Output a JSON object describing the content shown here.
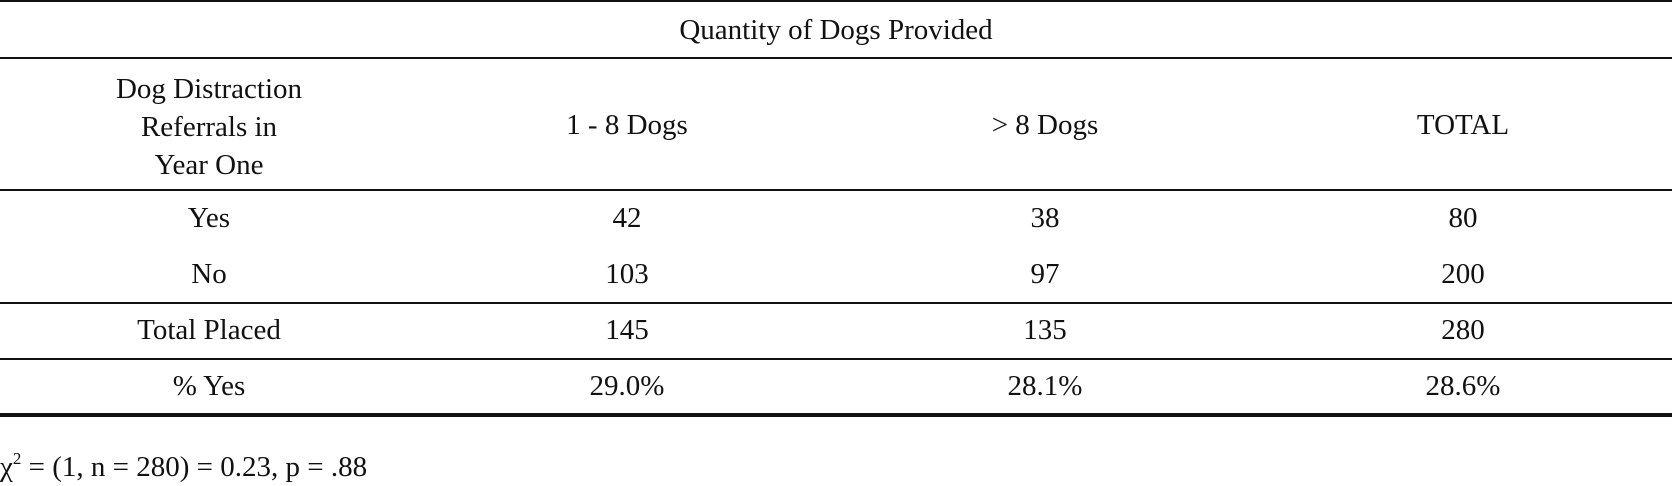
{
  "table": {
    "spanner_header": "Quantity of Dogs Provided",
    "stub_header_lines": [
      "Dog Distraction",
      "Referrals in",
      "Year One"
    ],
    "column_headers": [
      "1 - 8 Dogs",
      "> 8 Dogs",
      "TOTAL"
    ],
    "rows": [
      {
        "label": "Yes",
        "values": [
          "42",
          "38",
          "80"
        ]
      },
      {
        "label": "No",
        "values": [
          "103",
          "97",
          "200"
        ]
      },
      {
        "label": "Total Placed",
        "values": [
          "145",
          "135",
          "280"
        ]
      },
      {
        "label": "% Yes",
        "values": [
          "29.0%",
          "28.1%",
          "28.6%"
        ]
      }
    ]
  },
  "footnote": {
    "chi_symbol": "χ",
    "superscript": "2",
    "text": " = (1, n = 280) = 0.23, p = .88"
  }
}
